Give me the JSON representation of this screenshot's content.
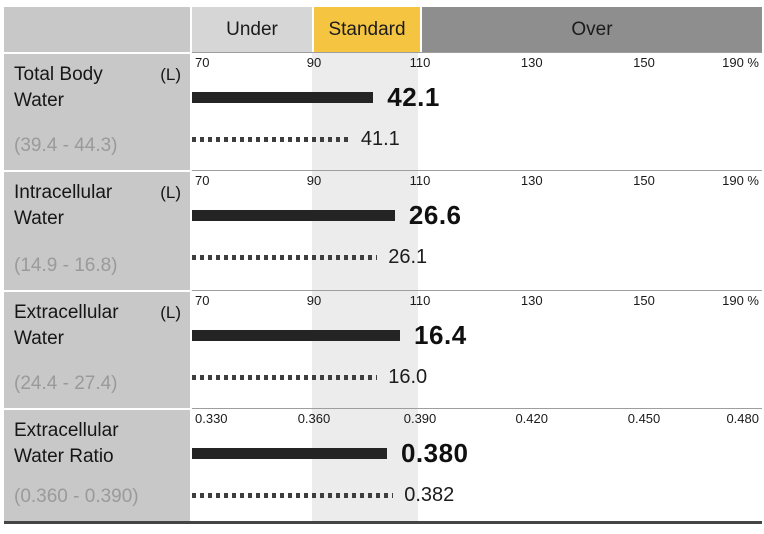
{
  "header": {
    "zones": [
      {
        "label": "Under"
      },
      {
        "label": "Standard"
      },
      {
        "label": "Over"
      }
    ]
  },
  "colors": {
    "label_column_bg": "#c8c8c8",
    "under_bg": "#d6d6d6",
    "standard_bg": "#f5c440",
    "over_bg": "#8e8e8e",
    "standard_band_bg": "#ececec",
    "solid_bar": "#242424",
    "dotted_bar": "#3e3e3e",
    "range_text": "#9a9a9a"
  },
  "chart_data": {
    "type": "bar",
    "orientation": "horizontal",
    "legend": "solid bar = current measurement, dotted bar = previous measurement",
    "zones": [
      "Under",
      "Standard",
      "Over"
    ],
    "standard_zone_scale": [
      90,
      110
    ],
    "rows": [
      {
        "label": "Total Body Water",
        "unit": "(L)",
        "normal_range": "(39.4 - 44.3)",
        "axis_ticks": [
          "70",
          "90",
          "110",
          "130",
          "150",
          "190 %"
        ],
        "axis_range": [
          70,
          190
        ],
        "bars": [
          {
            "style": "solid",
            "value": "42.1",
            "pct_width": 31.8
          },
          {
            "style": "dotted",
            "value": "41.1",
            "pct_width": 27.7
          }
        ]
      },
      {
        "label": "Intracellular Water",
        "unit": "(L)",
        "normal_range": "(14.9 - 16.8)",
        "axis_ticks": [
          "70",
          "90",
          "110",
          "130",
          "150",
          "190 %"
        ],
        "axis_range": [
          70,
          190
        ],
        "bars": [
          {
            "style": "solid",
            "value": "26.6",
            "pct_width": 35.6
          },
          {
            "style": "dotted",
            "value": "26.1",
            "pct_width": 32.5
          }
        ]
      },
      {
        "label": "Extracellular Water",
        "unit": "(L)",
        "normal_range": "(24.4 - 27.4)",
        "axis_ticks": [
          "70",
          "90",
          "110",
          "130",
          "150",
          "190 %"
        ],
        "axis_range": [
          70,
          190
        ],
        "bars": [
          {
            "style": "solid",
            "value": "16.4",
            "pct_width": 36.5
          },
          {
            "style": "dotted",
            "value": "16.0",
            "pct_width": 32.5
          }
        ]
      },
      {
        "label": "Extracellular Water Ratio",
        "unit": "",
        "normal_range": "(0.360 - 0.390)",
        "axis_ticks": [
          "0.330",
          "0.360",
          "0.390",
          "0.420",
          "0.450",
          "0.480"
        ],
        "axis_range": [
          0.33,
          0.48
        ],
        "bars": [
          {
            "style": "solid",
            "value": "0.380",
            "pct_width": 34.2
          },
          {
            "style": "dotted",
            "value": "0.382",
            "pct_width": 35.3
          }
        ]
      }
    ]
  }
}
